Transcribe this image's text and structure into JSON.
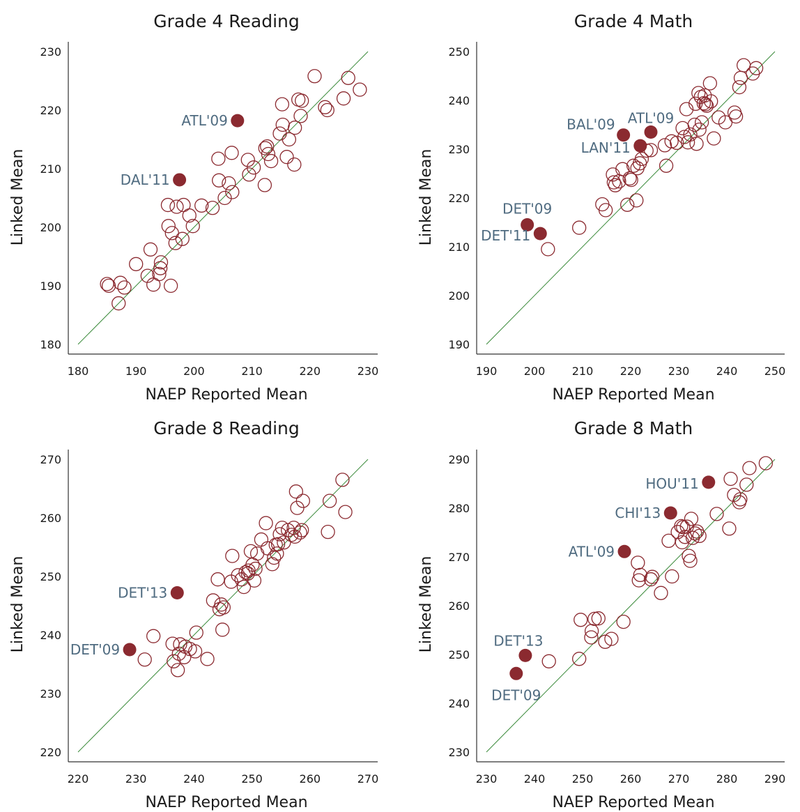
{
  "chart_data": [
    {
      "type": "scatter",
      "title": "Grade 4 Reading",
      "xlabel": "NAEP Reported Mean",
      "ylabel": "Linked Mean",
      "xlim": [
        180,
        230
      ],
      "ylim": [
        180,
        230
      ],
      "xticks": [
        "180",
        "190",
        "200",
        "210",
        "220",
        "230"
      ],
      "yticks": [
        "180",
        "190",
        "200",
        "210",
        "220",
        "230"
      ],
      "grid": false,
      "reference_line": "y = x",
      "points": [
        [
          185,
          190.3
        ],
        [
          185.3,
          190
        ],
        [
          187,
          187
        ],
        [
          187.3,
          190.5
        ],
        [
          188,
          189.7
        ],
        [
          190,
          193.7
        ],
        [
          192,
          191.7
        ],
        [
          192.5,
          196.2
        ],
        [
          193,
          190.2
        ],
        [
          194,
          192
        ],
        [
          194.2,
          193
        ],
        [
          194.3,
          194
        ],
        [
          195.5,
          203.8
        ],
        [
          195.6,
          200.2
        ],
        [
          196,
          190
        ],
        [
          196.2,
          199
        ],
        [
          196.8,
          197.3
        ],
        [
          197,
          203.5
        ],
        [
          198,
          198
        ],
        [
          198.2,
          203.8
        ],
        [
          199.2,
          202
        ],
        [
          199.8,
          200.2
        ],
        [
          201.3,
          203.7
        ],
        [
          203.2,
          203.3
        ],
        [
          204.2,
          211.7
        ],
        [
          204.3,
          208
        ],
        [
          205.3,
          205
        ],
        [
          206,
          207.5
        ],
        [
          206.5,
          212.7
        ],
        [
          206.6,
          206
        ],
        [
          209.3,
          211.5
        ],
        [
          209.5,
          209
        ],
        [
          210.3,
          210.2
        ],
        [
          212.2,
          207.2
        ],
        [
          212.3,
          213.5
        ],
        [
          212.6,
          213.8
        ],
        [
          212.8,
          212.5
        ],
        [
          213.3,
          211.3
        ],
        [
          214.8,
          216
        ],
        [
          215.2,
          221
        ],
        [
          215.3,
          217.5
        ],
        [
          216,
          212
        ],
        [
          216.4,
          215
        ],
        [
          217.3,
          210.7
        ],
        [
          217.4,
          217
        ],
        [
          218,
          221.8
        ],
        [
          218.4,
          219
        ],
        [
          218.6,
          221.6
        ],
        [
          220.8,
          225.8
        ],
        [
          222.6,
          220.5
        ],
        [
          223,
          220
        ],
        [
          225.8,
          222
        ],
        [
          226.6,
          225.5
        ],
        [
          228.6,
          223.5
        ]
      ],
      "highlighted": [
        {
          "label": "ATL'09",
          "x": 207.5,
          "y": 218.2
        },
        {
          "label": "DAL'11",
          "x": 197.5,
          "y": 208.1
        }
      ]
    },
    {
      "type": "scatter",
      "title": "Grade 4 Math",
      "xlabel": "NAEP Reported Mean",
      "ylabel": "Linked Mean",
      "xlim": [
        190,
        250
      ],
      "ylim": [
        190,
        250
      ],
      "xticks": [
        "190",
        "200",
        "210",
        "220",
        "230",
        "240",
        "250"
      ],
      "yticks": [
        "190",
        "200",
        "210",
        "220",
        "230",
        "240",
        "250"
      ],
      "grid": false,
      "reference_line": "y = x",
      "points": [
        [
          202.8,
          209.5
        ],
        [
          209.3,
          213.9
        ],
        [
          214.1,
          218.7
        ],
        [
          214.8,
          217.5
        ],
        [
          216.3,
          224.8
        ],
        [
          216.5,
          223.2
        ],
        [
          216.8,
          222.6
        ],
        [
          217.6,
          223.4
        ],
        [
          218.3,
          225.9
        ],
        [
          219.3,
          218.6
        ],
        [
          219.8,
          224
        ],
        [
          220.1,
          223.7
        ],
        [
          220.6,
          226.6
        ],
        [
          221.2,
          219.5
        ],
        [
          221.4,
          226.1
        ],
        [
          221.9,
          227.1
        ],
        [
          222.3,
          228
        ],
        [
          223.3,
          229.7
        ],
        [
          224.2,
          229.8
        ],
        [
          227.1,
          230.8
        ],
        [
          227.4,
          226.6
        ],
        [
          228.5,
          231.6
        ],
        [
          229.6,
          231.3
        ],
        [
          230.8,
          234.3
        ],
        [
          231.2,
          232.5
        ],
        [
          231.6,
          238.2
        ],
        [
          231.9,
          231.4
        ],
        [
          232.4,
          233
        ],
        [
          233.3,
          235
        ],
        [
          233.5,
          239.3
        ],
        [
          233.7,
          231.1
        ],
        [
          234.1,
          241.5
        ],
        [
          234.3,
          234
        ],
        [
          234.6,
          240.7
        ],
        [
          234.8,
          235.5
        ],
        [
          235.2,
          239.4
        ],
        [
          235.4,
          241
        ],
        [
          235.6,
          239.2
        ],
        [
          235.8,
          238.9
        ],
        [
          236.5,
          243.5
        ],
        [
          236.7,
          239.8
        ],
        [
          237.3,
          232.2
        ],
        [
          238.3,
          236.5
        ],
        [
          239.7,
          235.5
        ],
        [
          241.6,
          237.5
        ],
        [
          241.9,
          236.7
        ],
        [
          242.6,
          242.7
        ],
        [
          242.9,
          244.6
        ],
        [
          243.5,
          247.2
        ],
        [
          245.4,
          245.5
        ],
        [
          246.1,
          246.6
        ]
      ],
      "highlighted": [
        {
          "label": "BAL'09",
          "x": 218.5,
          "y": 232.9
        },
        {
          "label": "ATL'09",
          "x": 224.2,
          "y": 233.5
        },
        {
          "label": "LAN'11",
          "x": 222,
          "y": 230.7
        },
        {
          "label": "DET'09",
          "x": 198.5,
          "y": 214.5
        },
        {
          "label": "DET'11",
          "x": 201.2,
          "y": 212.7
        }
      ]
    },
    {
      "type": "scatter",
      "title": "Grade 8 Reading",
      "xlabel": "NAEP Reported Mean",
      "ylabel": "Linked Mean",
      "xlim": [
        220,
        270
      ],
      "ylim": [
        220,
        270
      ],
      "xticks": [
        "220",
        "230",
        "240",
        "250",
        "260",
        "270"
      ],
      "yticks": [
        "220",
        "230",
        "240",
        "250",
        "260",
        "270"
      ],
      "grid": false,
      "reference_line": "y = x",
      "points": [
        [
          231.5,
          235.8
        ],
        [
          233,
          239.8
        ],
        [
          236.3,
          238.5
        ],
        [
          236.5,
          235.5
        ],
        [
          237.2,
          234
        ],
        [
          237.4,
          236.8
        ],
        [
          237.6,
          238.4
        ],
        [
          238.3,
          236.2
        ],
        [
          238.5,
          238
        ],
        [
          239.3,
          237.6
        ],
        [
          240.2,
          237.2
        ],
        [
          240.4,
          240.4
        ],
        [
          242.3,
          235.9
        ],
        [
          243.3,
          245.9
        ],
        [
          244.1,
          249.5
        ],
        [
          244.4,
          244.4
        ],
        [
          244.7,
          245.2
        ],
        [
          244.9,
          240.9
        ],
        [
          245.1,
          244.7
        ],
        [
          246.4,
          249.1
        ],
        [
          246.6,
          253.5
        ],
        [
          247.6,
          250.2
        ],
        [
          248.2,
          249.5
        ],
        [
          248.6,
          248.2
        ],
        [
          248.9,
          250.7
        ],
        [
          249.3,
          250.5
        ],
        [
          249.4,
          251
        ],
        [
          249.8,
          254.3
        ],
        [
          250.1,
          252
        ],
        [
          250.4,
          249.3
        ],
        [
          250.6,
          251.3
        ],
        [
          250.9,
          253.9
        ],
        [
          251.6,
          256.3
        ],
        [
          252.4,
          259.1
        ],
        [
          252.7,
          254.8
        ],
        [
          253.5,
          252.1
        ],
        [
          253.8,
          253.2
        ],
        [
          254.1,
          255.4
        ],
        [
          254.3,
          253.9
        ],
        [
          254.5,
          255.5
        ],
        [
          254.8,
          257.2
        ],
        [
          255.2,
          258.3
        ],
        [
          255.5,
          255.8
        ],
        [
          256.2,
          257.9
        ],
        [
          256.8,
          257.1
        ],
        [
          257.2,
          258.3
        ],
        [
          257.4,
          256.8
        ],
        [
          257.6,
          264.5
        ],
        [
          257.8,
          261.7
        ],
        [
          258.3,
          257.5
        ],
        [
          258.6,
          257.9
        ],
        [
          258.8,
          262.9
        ],
        [
          263.1,
          257.6
        ],
        [
          263.4,
          262.9
        ],
        [
          265.6,
          266.5
        ],
        [
          266.1,
          261
        ]
      ],
      "highlighted": [
        {
          "label": "DET'13",
          "x": 237.1,
          "y": 247.2
        },
        {
          "label": "DET'09",
          "x": 228.9,
          "y": 237.5
        }
      ]
    },
    {
      "type": "scatter",
      "title": "Grade 8 Math",
      "xlabel": "NAEP Reported Mean",
      "ylabel": "Linked Mean",
      "xlim": [
        230,
        290
      ],
      "ylim": [
        230,
        290
      ],
      "xticks": [
        "230",
        "240",
        "250",
        "260",
        "270",
        "280",
        "290"
      ],
      "yticks": [
        "230",
        "240",
        "250",
        "260",
        "270",
        "280",
        "290"
      ],
      "grid": false,
      "reference_line": "y = x",
      "points": [
        [
          243,
          248.6
        ],
        [
          249.3,
          249.1
        ],
        [
          249.6,
          257.1
        ],
        [
          251.8,
          253.5
        ],
        [
          251.9,
          254.8
        ],
        [
          252.5,
          257.3
        ],
        [
          253.3,
          257.4
        ],
        [
          254.7,
          252.6
        ],
        [
          256,
          253.2
        ],
        [
          258.5,
          256.7
        ],
        [
          261.5,
          268.8
        ],
        [
          261.7,
          265.2
        ],
        [
          262,
          266.3
        ],
        [
          264.2,
          265.4
        ],
        [
          264.5,
          265.9
        ],
        [
          266.3,
          262.6
        ],
        [
          267.9,
          273.3
        ],
        [
          268.6,
          266
        ],
        [
          269.8,
          275.1
        ],
        [
          270.5,
          276.3
        ],
        [
          270.7,
          273
        ],
        [
          270.9,
          276.1
        ],
        [
          271.3,
          274.1
        ],
        [
          271.7,
          276.2
        ],
        [
          272.1,
          270.2
        ],
        [
          272.4,
          269.2
        ],
        [
          272.6,
          277.8
        ],
        [
          272.9,
          273.9
        ],
        [
          273.4,
          274.8
        ],
        [
          273.8,
          275.2
        ],
        [
          274.3,
          274.3
        ],
        [
          277.9,
          278.8
        ],
        [
          280.5,
          275.8
        ],
        [
          280.8,
          286
        ],
        [
          281.5,
          282.7
        ],
        [
          282.6,
          281.2
        ],
        [
          282.8,
          281.8
        ],
        [
          284.1,
          284.8
        ],
        [
          284.7,
          288.2
        ],
        [
          288.1,
          289.2
        ]
      ],
      "highlighted": [
        {
          "label": "HOU'11",
          "x": 276.2,
          "y": 285.3
        },
        {
          "label": "CHI'13",
          "x": 268.3,
          "y": 279
        },
        {
          "label": "ATL'09",
          "x": 258.7,
          "y": 271.1
        },
        {
          "label": "DET'13",
          "x": 238.1,
          "y": 249.8
        },
        {
          "label": "DET'09",
          "x": 236.2,
          "y": 246.1
        }
      ]
    }
  ]
}
